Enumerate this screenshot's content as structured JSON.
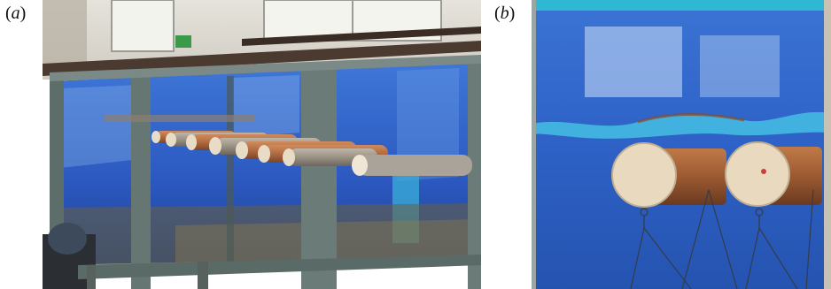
{
  "figure": {
    "panels": [
      {
        "label": "a"
      },
      {
        "label": "b"
      }
    ],
    "colors": {
      "water_blue": "#2e5fc9",
      "deep_blue": "#1f3f9a",
      "frame_grey": "#5d6d6a",
      "cylinder_brown": "#b06a40",
      "cylinder_cap": "#e9dcc6"
    }
  }
}
